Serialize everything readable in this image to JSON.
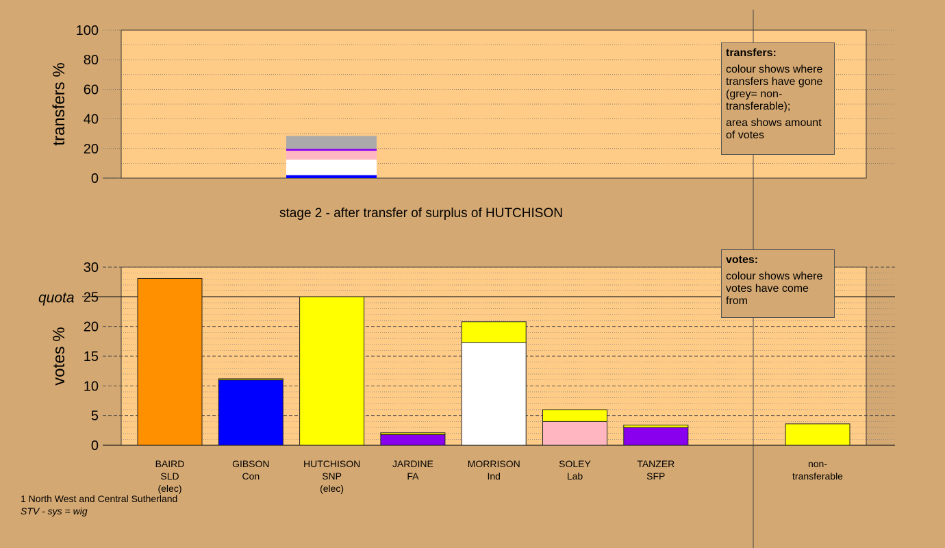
{
  "chart_data": [
    {
      "type": "bar",
      "title": "stage 2 - after transfer of surplus of HUTCHISON",
      "ylabel": "transfers %",
      "ylim": [
        0,
        100
      ],
      "yticks": [
        0,
        20,
        40,
        60,
        80,
        100
      ],
      "stack": [
        {
          "color": "#0000ff",
          "value": 2.0
        },
        {
          "color": "#ffffff",
          "value": 10.5
        },
        {
          "color": "#ffb6c1",
          "value": 6.0
        },
        {
          "color": "#8800ee",
          "value": 1.3
        },
        {
          "color": "#aaaaaa",
          "value": 8.7
        }
      ],
      "legend": {
        "heading": "transfers:",
        "line1": "colour shows where transfers have gone (grey= non-transferable);",
        "line2": "area shows amount of votes"
      }
    },
    {
      "type": "bar",
      "ylabel": "votes %",
      "ylim": [
        0,
        30
      ],
      "yticks": [
        0,
        5,
        10,
        15,
        20,
        25,
        30
      ],
      "quota": {
        "value": 25,
        "label": "quota"
      },
      "candidates": [
        {
          "name": "BAIRD",
          "party": "SLD",
          "note": "(elec)",
          "segments": [
            {
              "color": "#ff9000",
              "value": 28.1
            }
          ]
        },
        {
          "name": "GIBSON",
          "party": "Con",
          "note": "",
          "segments": [
            {
              "color": "#0000ff",
              "value": 11.0
            },
            {
              "color": "#ffff00",
              "value": 0.2
            }
          ]
        },
        {
          "name": "HUTCHISON",
          "party": "SNP",
          "note": "(elec)",
          "segments": [
            {
              "color": "#ffff00",
              "value": 25.0
            }
          ]
        },
        {
          "name": "JARDINE",
          "party": "FA",
          "note": "",
          "segments": [
            {
              "color": "#8800ee",
              "value": 1.8
            },
            {
              "color": "#ffff00",
              "value": 0.3
            }
          ]
        },
        {
          "name": "MORRISON",
          "party": "Ind",
          "note": "",
          "segments": [
            {
              "color": "#ffffff",
              "value": 17.3
            },
            {
              "color": "#ffff00",
              "value": 3.5
            }
          ]
        },
        {
          "name": "SOLEY",
          "party": "Lab",
          "note": "",
          "segments": [
            {
              "color": "#ffb6c1",
              "value": 4.0
            },
            {
              "color": "#ffff00",
              "value": 2.0
            }
          ]
        },
        {
          "name": "TANZER",
          "party": "SFP",
          "note": "",
          "segments": [
            {
              "color": "#8800ee",
              "value": 3.0
            },
            {
              "color": "#ffff00",
              "value": 0.4
            }
          ]
        }
      ],
      "nontransferable": {
        "label1": "non-",
        "label2": "transferable",
        "segments": [
          {
            "color": "#ffff00",
            "value": 3.6
          }
        ]
      },
      "legend": {
        "heading": "votes:",
        "line1": "colour shows where votes have come from"
      }
    }
  ],
  "footer": {
    "line1": "1 North West and Central Sutherland",
    "line2": "STV - sys = wig"
  },
  "colors": {
    "background": "#d4a872",
    "plot_area": "#ffcc88"
  }
}
